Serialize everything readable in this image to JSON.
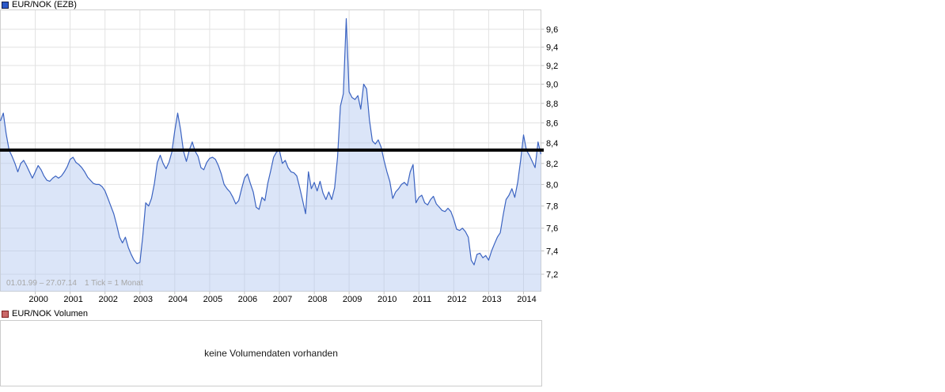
{
  "header": {
    "title": "EUR/NOK (EZB)",
    "swatch": {
      "fill": "#2a57c8",
      "border": "#141c45"
    }
  },
  "volume": {
    "label": "EUR/NOK Volumen",
    "message": "keine Volumendaten vorhanden",
    "swatch": {
      "fill": "#ca6868",
      "border": "#7e1e1e"
    }
  },
  "chart_data": {
    "type": "area",
    "title": "EUR/NOK (EZB)",
    "range_label": "01.01.99 – 27.07.14",
    "tick_note": "1 Tick = 1 Monat",
    "x_start": "1999-01",
    "x_end": "2014-07",
    "tick_interval": "1 month",
    "y_scale": "log",
    "y_ticks": [
      9.6,
      9.4,
      9.2,
      9.0,
      8.8,
      8.6,
      8.4,
      8.2,
      8.0,
      7.8,
      7.6,
      7.4,
      7.2
    ],
    "y_range_visible": [
      7.06,
      9.83
    ],
    "x_tick_years": [
      2000,
      2001,
      2002,
      2003,
      2004,
      2005,
      2006,
      2007,
      2008,
      2009,
      2010,
      2011,
      2012,
      2013,
      2014
    ],
    "grid": true,
    "legend_position": "top-left",
    "current_price_line": 8.33,
    "colors": {
      "line": "#3b63c1",
      "fill": "rgba(175,197,239,0.45)",
      "price_line": "#000000",
      "grid": "#e2e2e2",
      "frame": "#d0d0d0",
      "tick": "#c0c0c0",
      "axis_text": "#000000",
      "footer_text": "#a6a6a6"
    },
    "series": [
      {
        "name": "EUR/NOK",
        "start_month": "1999-01",
        "values": [
          8.62,
          8.7,
          8.49,
          8.33,
          8.27,
          8.2,
          8.12,
          8.2,
          8.23,
          8.18,
          8.12,
          8.06,
          8.12,
          8.18,
          8.14,
          8.08,
          8.04,
          8.03,
          8.06,
          8.08,
          8.06,
          8.08,
          8.12,
          8.17,
          8.24,
          8.26,
          8.21,
          8.19,
          8.16,
          8.12,
          8.07,
          8.04,
          8.01,
          8.0,
          8.0,
          7.98,
          7.94,
          7.87,
          7.8,
          7.73,
          7.63,
          7.52,
          7.47,
          7.52,
          7.43,
          7.37,
          7.32,
          7.29,
          7.3,
          7.53,
          7.83,
          7.8,
          7.87,
          8.01,
          8.21,
          8.28,
          8.2,
          8.15,
          8.21,
          8.31,
          8.52,
          8.7,
          8.53,
          8.32,
          8.22,
          8.33,
          8.41,
          8.32,
          8.27,
          8.16,
          8.14,
          8.21,
          8.25,
          8.26,
          8.24,
          8.18,
          8.1,
          8.0,
          7.96,
          7.93,
          7.88,
          7.82,
          7.85,
          7.96,
          8.06,
          8.1,
          8.01,
          7.93,
          7.79,
          7.77,
          7.88,
          7.85,
          8.01,
          8.13,
          8.26,
          8.31,
          8.33,
          8.2,
          8.23,
          8.16,
          8.12,
          8.11,
          8.08,
          7.97,
          7.85,
          7.73,
          8.12,
          7.96,
          8.02,
          7.94,
          8.03,
          7.92,
          7.86,
          7.93,
          7.86,
          7.97,
          8.26,
          8.77,
          8.9,
          9.72,
          8.92,
          8.86,
          8.84,
          8.88,
          8.74,
          9.0,
          8.95,
          8.63,
          8.42,
          8.39,
          8.43,
          8.36,
          8.23,
          8.12,
          8.03,
          7.87,
          7.93,
          7.96,
          8.0,
          8.02,
          7.99,
          8.12,
          8.19,
          7.83,
          7.88,
          7.9,
          7.83,
          7.81,
          7.86,
          7.89,
          7.82,
          7.79,
          7.76,
          7.75,
          7.78,
          7.75,
          7.68,
          7.59,
          7.58,
          7.6,
          7.57,
          7.52,
          7.32,
          7.28,
          7.37,
          7.38,
          7.34,
          7.36,
          7.32,
          7.4,
          7.46,
          7.52,
          7.56,
          7.72,
          7.86,
          7.9,
          7.96,
          7.88,
          8.02,
          8.23,
          8.48,
          8.33,
          8.28,
          8.22,
          8.16,
          8.41,
          8.29
        ]
      }
    ]
  }
}
